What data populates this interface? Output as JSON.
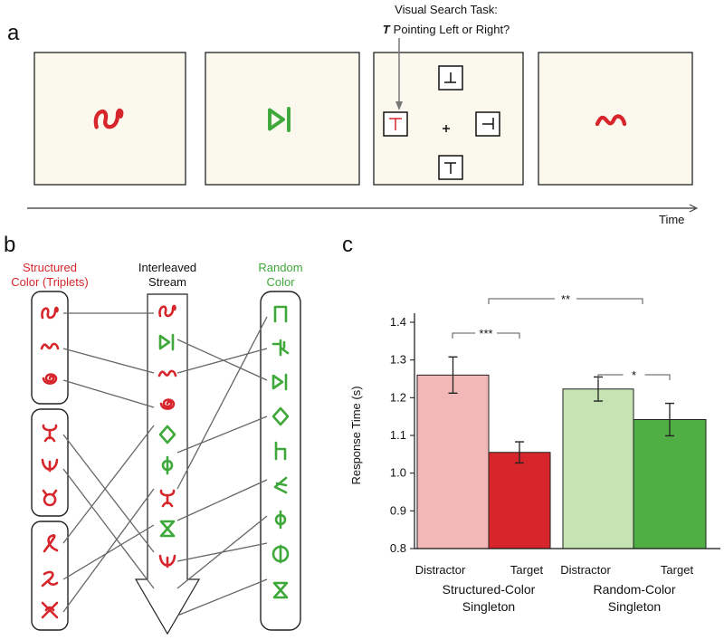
{
  "panel_labels": [
    "a",
    "b",
    "c"
  ],
  "panel_a": {
    "task_title": "Visual Search Task:",
    "task_t": "T",
    "task_rest": "Pointing Left or Right?",
    "time_label": "Time"
  },
  "panel_b": {
    "structured_label": [
      "Structured",
      "Color (Triplets)"
    ],
    "stream_label": [
      "Interleaved",
      "Stream"
    ],
    "random_label": [
      "Random",
      "Color"
    ]
  },
  "chart_data": {
    "type": "bar",
    "ylabel": "Response Time (s)",
    "categories": [
      "Distractor",
      "Target",
      "Distractor",
      "Target"
    ],
    "groups": [
      [
        "Structured-Color",
        "Singleton"
      ],
      [
        "Random-Color",
        "Singleton"
      ]
    ],
    "values": [
      1.26,
      1.055,
      1.223,
      1.142
    ],
    "errors": [
      0.048,
      0.028,
      0.032,
      0.043
    ],
    "colors": [
      "#f2b8b8",
      "#d7262b",
      "#c5e3b3",
      "#4fae44"
    ],
    "ylim": [
      0.8,
      1.4
    ],
    "yticks": [
      0.8,
      0.9,
      {
        "value": 1,
        "label": "1.0"
      },
      1.1,
      1.2,
      1.3,
      1.4
    ],
    "significance": [
      "***",
      "*",
      "**"
    ]
  }
}
